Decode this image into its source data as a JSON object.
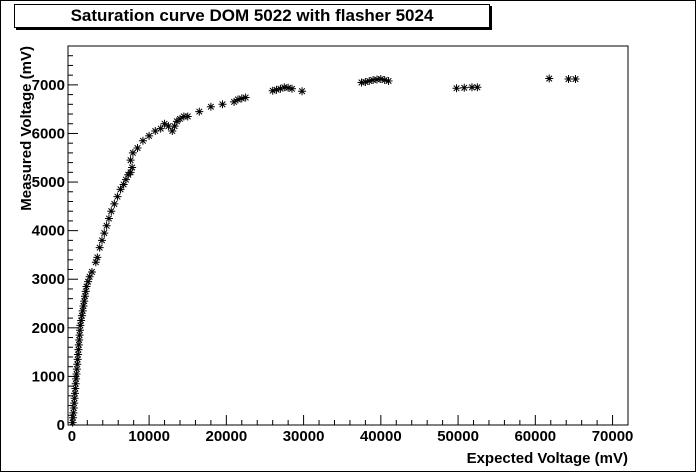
{
  "chart_data": {
    "type": "scatter",
    "title": "Saturation curve DOM 5022 with flasher 5024",
    "xlabel": "Expected Voltage (mV)",
    "ylabel": "Measured Voltage (mV)",
    "xlim": [
      -500,
      72000
    ],
    "ylim": [
      0,
      7800
    ],
    "xticks": [
      0,
      10000,
      20000,
      30000,
      40000,
      50000,
      60000,
      70000
    ],
    "yticks": [
      0,
      1000,
      2000,
      3000,
      4000,
      5000,
      6000,
      7000
    ],
    "marker": "asterisk",
    "grid": false,
    "points": [
      [
        100,
        50
      ],
      [
        150,
        150
      ],
      [
        200,
        250
      ],
      [
        250,
        350
      ],
      [
        300,
        450
      ],
      [
        350,
        550
      ],
      [
        400,
        650
      ],
      [
        450,
        750
      ],
      [
        500,
        850
      ],
      [
        550,
        950
      ],
      [
        600,
        1050
      ],
      [
        650,
        1150
      ],
      [
        700,
        1250
      ],
      [
        750,
        1350
      ],
      [
        800,
        1450
      ],
      [
        850,
        1550
      ],
      [
        900,
        1650
      ],
      [
        950,
        1750
      ],
      [
        1000,
        1850
      ],
      [
        1050,
        1950
      ],
      [
        1100,
        2050
      ],
      [
        1200,
        2150
      ],
      [
        1300,
        2250
      ],
      [
        1400,
        2350
      ],
      [
        1500,
        2450
      ],
      [
        1600,
        2550
      ],
      [
        1700,
        2650
      ],
      [
        1800,
        2750
      ],
      [
        1900,
        2850
      ],
      [
        2100,
        2950
      ],
      [
        2300,
        3050
      ],
      [
        2600,
        3150
      ],
      [
        3100,
        3350
      ],
      [
        3300,
        3450
      ],
      [
        3600,
        3650
      ],
      [
        3900,
        3800
      ],
      [
        4200,
        3950
      ],
      [
        4500,
        4100
      ],
      [
        4800,
        4250
      ],
      [
        5100,
        4400
      ],
      [
        5500,
        4550
      ],
      [
        5900,
        4700
      ],
      [
        6300,
        4850
      ],
      [
        6700,
        4950
      ],
      [
        7000,
        5050
      ],
      [
        7300,
        5150
      ],
      [
        7600,
        5200
      ],
      [
        7800,
        5300
      ],
      [
        7600,
        5450
      ],
      [
        7900,
        5600
      ],
      [
        8500,
        5700
      ],
      [
        9200,
        5850
      ],
      [
        10000,
        5950
      ],
      [
        10800,
        6050
      ],
      [
        11500,
        6100
      ],
      [
        12000,
        6200
      ],
      [
        12500,
        6150
      ],
      [
        13000,
        6050
      ],
      [
        13300,
        6150
      ],
      [
        13600,
        6250
      ],
      [
        14000,
        6300
      ],
      [
        14500,
        6350
      ],
      [
        15000,
        6350
      ],
      [
        16500,
        6450
      ],
      [
        18000,
        6550
      ],
      [
        19500,
        6600
      ],
      [
        21000,
        6650
      ],
      [
        21500,
        6700
      ],
      [
        22000,
        6720
      ],
      [
        22500,
        6740
      ],
      [
        26000,
        6880
      ],
      [
        26500,
        6900
      ],
      [
        27000,
        6920
      ],
      [
        27500,
        6950
      ],
      [
        28000,
        6940
      ],
      [
        28500,
        6920
      ],
      [
        29800,
        6870
      ],
      [
        37500,
        7050
      ],
      [
        38000,
        7060
      ],
      [
        38500,
        7080
      ],
      [
        39000,
        7100
      ],
      [
        39500,
        7110
      ],
      [
        40000,
        7120
      ],
      [
        40500,
        7100
      ],
      [
        41000,
        7080
      ],
      [
        49800,
        6930
      ],
      [
        50800,
        6940
      ],
      [
        51800,
        6950
      ],
      [
        52500,
        6950
      ],
      [
        61800,
        7130
      ],
      [
        64300,
        7120
      ],
      [
        65200,
        7120
      ]
    ]
  }
}
